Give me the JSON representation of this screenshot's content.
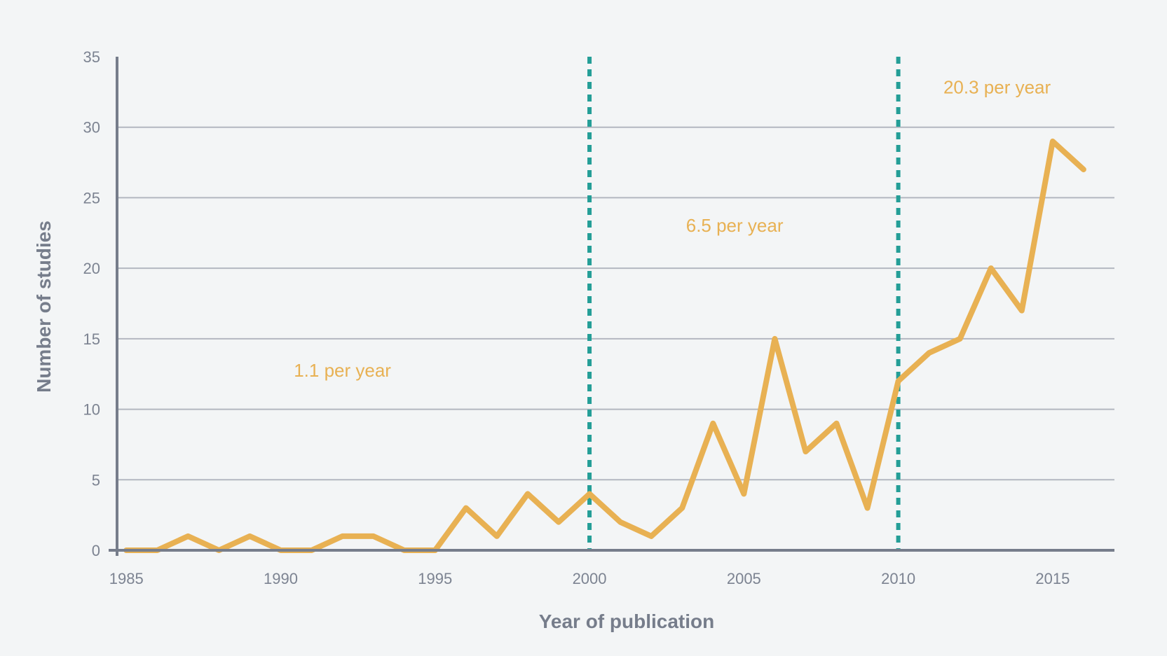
{
  "chart_data": {
    "type": "line",
    "xlabel": "Year of publication",
    "ylabel": "Number of studies",
    "xlim": [
      1984.7,
      2017
    ],
    "ylim": [
      0,
      35
    ],
    "xticks": [
      1985,
      1990,
      1995,
      2000,
      2005,
      2010,
      2015
    ],
    "yticks": [
      0,
      5,
      10,
      15,
      20,
      25,
      30,
      35
    ],
    "grid": true,
    "series": [
      {
        "x": [
          1985,
          1986,
          1987,
          1988,
          1989,
          1990,
          1991,
          1992,
          1993,
          1994,
          1995,
          1996,
          1997,
          1998,
          1999,
          2000,
          2001,
          2002,
          2003,
          2004,
          2005,
          2006,
          2007,
          2008,
          2009,
          2010,
          2011,
          2012,
          2013,
          2014,
          2015,
          2016
        ],
        "values": [
          0,
          0,
          1,
          0,
          1,
          0,
          0,
          1,
          1,
          0,
          0,
          3,
          1,
          4,
          2,
          4,
          2,
          1,
          3,
          9,
          4,
          15,
          7,
          9,
          3,
          12,
          14,
          15,
          20,
          17,
          29,
          27
        ]
      }
    ],
    "vlines": [
      2000,
      2010
    ],
    "annotations": [
      {
        "text": "1.1 per year",
        "x": 1992,
        "y": 12.3
      },
      {
        "text": "6.5 per year",
        "x": 2004.7,
        "y": 22.6
      },
      {
        "text": "20.3 per year",
        "x": 2013.2,
        "y": 32.4
      }
    ],
    "colors": {
      "line": "#e8b153",
      "vline": "#249e97",
      "grid": "#b3b7c0",
      "axis": "#767d8b",
      "background": "#f3f5f6"
    }
  }
}
